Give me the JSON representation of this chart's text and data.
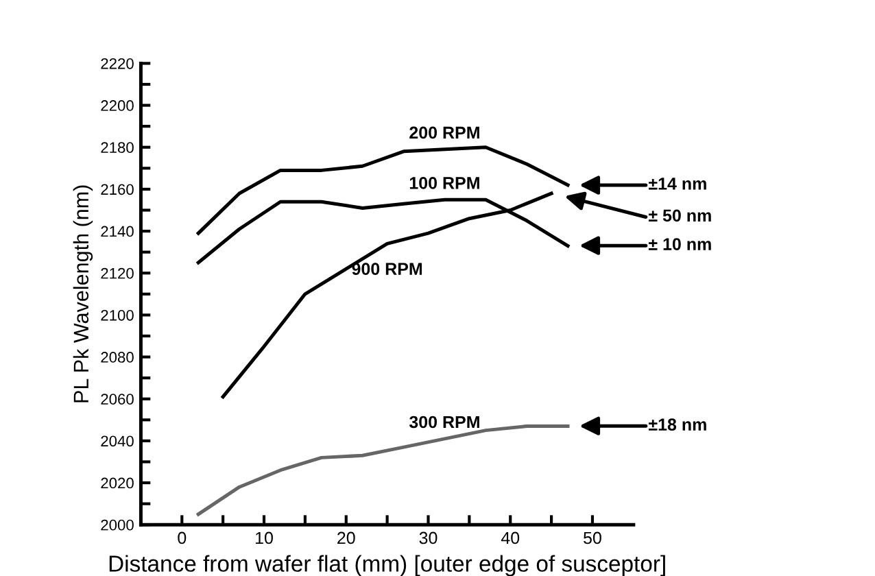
{
  "chart_data": {
    "type": "line",
    "xlabel": "Distance from wafer flat (mm) [outer edge of susceptor]",
    "ylabel": "PL Pk Wavelength (nm)",
    "xlim": [
      -5,
      55
    ],
    "xticks": [
      0,
      {
        "value": 5,
        "label": null
      },
      10,
      {
        "value": 15,
        "label": null
      },
      20,
      {
        "value": 25,
        "label": null
      },
      30,
      {
        "value": 35,
        "label": null
      },
      40,
      {
        "value": 45,
        "label": null
      },
      50
    ],
    "ylim": [
      2000,
      2220
    ],
    "yticks": [
      2000,
      {
        "value": 2010,
        "label": null
      },
      2020,
      {
        "value": 2030,
        "label": null
      },
      2040,
      {
        "value": 2050,
        "label": null
      },
      2060,
      {
        "value": 2070,
        "label": null
      },
      2080,
      {
        "value": 2090,
        "label": null
      },
      2100,
      {
        "value": 2110,
        "label": null
      },
      2120,
      {
        "value": 2130,
        "label": null
      },
      2140,
      {
        "value": 2150,
        "label": null
      },
      2160,
      {
        "value": 2170,
        "label": null
      },
      2180,
      {
        "value": 2190,
        "label": null
      },
      2200,
      {
        "value": 2210,
        "label": null
      },
      2220
    ],
    "grid": false,
    "marker": "none",
    "line_style": "solid",
    "series": [
      {
        "name": "200 RPM",
        "color": "#000000",
        "x": [
          2,
          7,
          12,
          17,
          22,
          27,
          32,
          37,
          42,
          47
        ],
        "values": [
          2139,
          2158,
          2169,
          2169,
          2171,
          2178,
          2179,
          2180,
          2172,
          2162
        ]
      },
      {
        "name": "100 RPM",
        "color": "#000000",
        "x": [
          2,
          7,
          12,
          17,
          22,
          27,
          32,
          37,
          42,
          47
        ],
        "values": [
          2125,
          2141,
          2154,
          2154,
          2151,
          2153,
          2155,
          2155,
          2145,
          2133
        ]
      },
      {
        "name": "900 RPM",
        "color": "#000000",
        "x": [
          5,
          10,
          15,
          20,
          25,
          30,
          35,
          40,
          45
        ],
        "values": [
          2061,
          2085,
          2110,
          2122,
          2134,
          2139,
          2146,
          2150,
          2158
        ]
      },
      {
        "name": "300 RPM",
        "color": "#666666",
        "x": [
          2,
          7,
          12,
          17,
          22,
          27,
          32,
          37,
          42,
          47
        ],
        "values": [
          2005,
          2018,
          2026,
          2032,
          2033,
          2037,
          2041,
          2045,
          2047,
          2047
        ]
      }
    ],
    "annotations": [
      "±14 nm",
      "± 50 nm",
      "± 10 nm",
      "±18 nm"
    ]
  }
}
